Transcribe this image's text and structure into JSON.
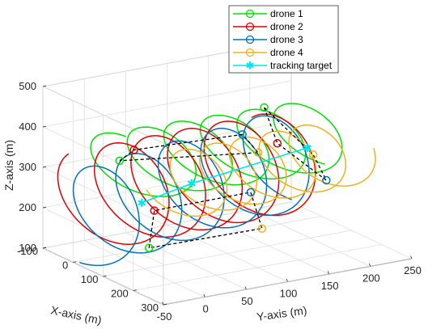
{
  "chart_data": {
    "type": "line",
    "projection": "3d",
    "grid": true,
    "legend_position": "top-right",
    "xlabel": "X-axis (m)",
    "ylabel": "Y-axis (m)",
    "zlabel": "Z-axis (m)",
    "x_ticks": [
      -100,
      0,
      100,
      200,
      300
    ],
    "y_ticks": [
      -50,
      0,
      50,
      100,
      150,
      200,
      250
    ],
    "z_ticks": [
      100,
      200,
      300,
      400,
      500
    ],
    "xlim": [
      -100,
      300
    ],
    "ylim": [
      -50,
      250
    ],
    "zlim": [
      100,
      500
    ],
    "series": [
      {
        "name": "drone 1",
        "color": "#00e000",
        "marker": "o",
        "path_model": {
          "y0": 0,
          "y1": 230,
          "x0": 35,
          "x1": 70,
          "radius": 110,
          "zc0": 330,
          "zc1": 335,
          "zamp": 75,
          "turns": 5.5,
          "phase": 1.55
        }
      },
      {
        "name": "drone 2",
        "color": "#e00000",
        "marker": "o",
        "path_model": {
          "y0": -40,
          "y1": 170,
          "x0": 60,
          "x1": 90,
          "radius": 120,
          "zc0": 275,
          "zc1": 295,
          "zamp": 115,
          "turns": 5.0,
          "phase": 2.3
        }
      },
      {
        "name": "drone 3",
        "color": "#0072bd",
        "marker": "o",
        "path_model": {
          "y0": -40,
          "y1": 200,
          "x0": 10,
          "x1": 55,
          "radius": 110,
          "zc0": 205,
          "zc1": 285,
          "zamp": 110,
          "turns": 5.0,
          "phase": 4.6
        }
      },
      {
        "name": "drone 4",
        "color": "#edb120",
        "marker": "o",
        "path_model": {
          "y0": 30,
          "y1": 240,
          "x0": 130,
          "x1": 95,
          "radius": 85,
          "zc0": 305,
          "zc1": 295,
          "zamp": 75,
          "turns": 5.5,
          "phase": 3.6
        }
      },
      {
        "name": "tracking target",
        "color": "#00e5ee",
        "marker": "*",
        "x": [
          50,
          50,
          50
        ],
        "y": [
          15,
          75,
          215
        ],
        "z": [
          240,
          265,
          300
        ]
      }
    ],
    "formation_links": [
      {
        "x": [
          -10,
          10,
          95,
          120,
          -10
        ],
        "y": [
          10,
          20,
          120,
          130,
          10
        ],
        "z": [
          325,
          355,
          385,
          345,
          325
        ]
      },
      {
        "x": [
          60,
          50,
          150,
          160,
          60
        ],
        "y": [
          20,
          30,
          110,
          120,
          20
        ],
        "z": [
          130,
          215,
          265,
          175,
          130
        ]
      },
      {
        "x": [
          30,
          60,
          140,
          110,
          30
        ],
        "y": [
          170,
          175,
          205,
          200,
          170
        ],
        "z": [
          410,
          330,
          255,
          310,
          410
        ]
      }
    ]
  }
}
